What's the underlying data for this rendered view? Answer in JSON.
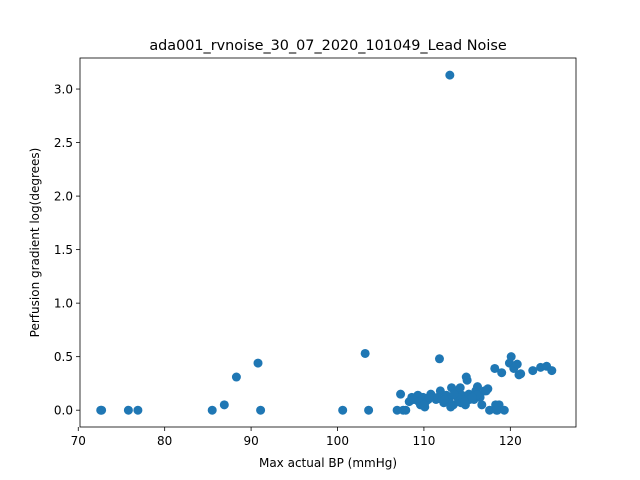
{
  "chart_data": {
    "type": "scatter",
    "title": "ada001_rvnoise_30_07_2020_101049_Lead Noise",
    "xlabel": "Max actual BP (mmHg)",
    "ylabel": "Perfusion gradient log(degrees)",
    "xlim": [
      70.2,
      127.6
    ],
    "ylim": [
      -0.157,
      3.29
    ],
    "xticks": [
      70,
      80,
      90,
      100,
      110,
      120
    ],
    "xtick_labels": [
      "70",
      "80",
      "90",
      "100",
      "110",
      "120"
    ],
    "yticks": [
      0.0,
      0.5,
      1.0,
      1.5,
      2.0,
      2.5,
      3.0
    ],
    "ytick_labels": [
      "0.0",
      "0.5",
      "1.0",
      "1.5",
      "2.0",
      "2.5",
      "3.0"
    ],
    "marker_color": "#1f77b4",
    "grid": false,
    "series": [
      {
        "x": [
          72.6,
          72.7,
          75.8,
          76.9,
          85.5,
          86.9,
          88.3,
          90.8,
          91.1,
          100.6,
          103.2,
          103.6,
          106.9,
          107.3,
          107.6,
          107.9,
          108.3,
          108.6,
          109.0,
          109.3,
          109.6,
          109.9,
          110.2,
          110.5,
          110.8,
          111.1,
          111.4,
          111.8,
          111.9,
          112.3,
          112.6,
          112.9,
          113.0,
          113.2,
          113.4,
          113.6,
          113.8,
          114.0,
          114.2,
          114.4,
          114.6,
          114.8,
          114.9,
          115.0,
          115.2,
          115.5,
          115.8,
          116.0,
          116.2,
          116.4,
          116.7,
          117.0,
          117.4,
          117.6,
          118.2,
          118.3,
          118.5,
          118.7,
          119.0,
          119.3,
          119.9,
          120.1,
          120.4,
          120.8,
          121.0,
          121.2,
          122.6,
          123.5,
          124.2,
          124.8,
          108.8,
          110.1,
          111.6,
          112.7,
          113.1,
          113.9,
          114.3,
          115.3,
          116.5,
          118.4,
          109.4,
          110.6,
          112.1,
          113.5,
          114.7,
          116.1,
          117.2,
          110.0,
          112.4,
          115.6
        ],
        "y": [
          0.0,
          0.0,
          0.0,
          0.0,
          0.0,
          0.05,
          0.31,
          0.44,
          0.0,
          0.0,
          0.53,
          0.0,
          0.0,
          0.15,
          0.0,
          0.0,
          0.08,
          0.12,
          0.1,
          0.14,
          0.05,
          0.12,
          0.08,
          0.1,
          0.15,
          0.12,
          0.1,
          0.48,
          0.18,
          0.07,
          0.14,
          0.1,
          3.13,
          0.21,
          0.05,
          0.14,
          0.18,
          0.08,
          0.21,
          0.14,
          0.1,
          0.05,
          0.31,
          0.28,
          0.15,
          0.12,
          0.1,
          0.18,
          0.22,
          0.14,
          0.05,
          0.18,
          0.2,
          0.0,
          0.39,
          0.05,
          0.0,
          0.05,
          0.35,
          0.0,
          0.44,
          0.5,
          0.39,
          0.43,
          0.33,
          0.34,
          0.37,
          0.4,
          0.41,
          0.37,
          0.1,
          0.03,
          0.12,
          0.08,
          0.03,
          0.12,
          0.07,
          0.1,
          0.12,
          0.0,
          0.08,
          0.12,
          0.1,
          0.15,
          0.08,
          0.14,
          0.18,
          0.05,
          0.1,
          0.12
        ]
      }
    ]
  }
}
